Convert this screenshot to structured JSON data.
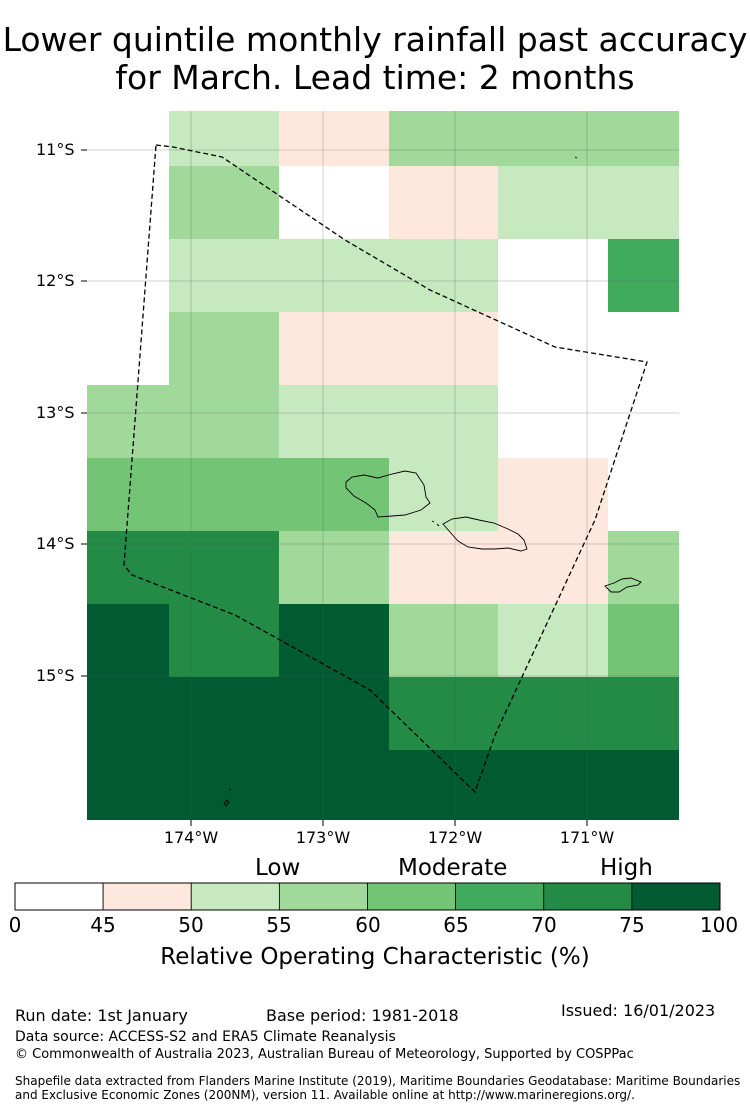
{
  "title": {
    "line1": "Lower quintile monthly rainfall past accuracy",
    "line2": "for March. Lead time: 2 months"
  },
  "map": {
    "lat_labels": [
      "11°S",
      "12°S",
      "13°S",
      "14°S",
      "15°S"
    ],
    "lon_labels": [
      "174°W",
      "173°W",
      "172°W",
      "171°W"
    ],
    "grid_rows": [
      [
        "none",
        "none",
        "#c7e9c0",
        "#fee8dd",
        "#a1d99b",
        "#a1d99b"
      ],
      [
        "none",
        "none",
        "#a1d99b",
        "#ffffff",
        "#fee8dd",
        "#c7e9c0"
      ],
      [
        "none",
        "none",
        "#c7e9c0",
        "#c7e9c0",
        "#c7e9c0",
        "#ffffff",
        "#41ab5d"
      ],
      [
        "none",
        "none",
        "#a1d99b",
        "#fee8dd",
        "#fee8dd",
        "#ffffff"
      ],
      [
        "none",
        "#a1d99b",
        "#a1d99b",
        "#c7e9c0",
        "#c7e9c0",
        "#ffffff"
      ],
      [
        "none",
        "#74c476",
        "#74c476",
        "#74c476",
        "#c7e9c0",
        "#fee8dd"
      ],
      [
        "none",
        "#238b45",
        "#238b45",
        "#a1d99b",
        "#fee8dd",
        "#fee8dd",
        "#a1d99b"
      ],
      [
        "none",
        "#005a32",
        "#238b45",
        "#005a32",
        "#a1d99b",
        "#c7e9c0",
        "#74c476"
      ],
      [
        "none",
        "#005a32",
        "#005a32",
        "#005a32",
        "#238b45",
        "#238b45",
        "#238b45"
      ],
      [
        "none",
        "#005a32",
        "#005a32",
        "#005a32",
        "#005a32",
        "#005a32",
        "#005a32"
      ]
    ]
  },
  "colorbar": {
    "categories": [
      "Low",
      "Moderate",
      "High"
    ],
    "ticks": [
      "0",
      "45",
      "50",
      "55",
      "60",
      "65",
      "70",
      "75",
      "100"
    ],
    "bins": [
      {
        "from": 0,
        "to": 45,
        "color": "#ffffff"
      },
      {
        "from": 45,
        "to": 50,
        "color": "#fee8dd"
      },
      {
        "from": 50,
        "to": 55,
        "color": "#c7e9c0"
      },
      {
        "from": 55,
        "to": 60,
        "color": "#a1d99b"
      },
      {
        "from": 60,
        "to": 65,
        "color": "#74c476"
      },
      {
        "from": 65,
        "to": 70,
        "color": "#41ab5d"
      },
      {
        "from": 70,
        "to": 75,
        "color": "#238b45"
      },
      {
        "from": 75,
        "to": 100,
        "color": "#005a32"
      }
    ],
    "axis_label": "Relative Operating Characteristic (%)"
  },
  "footer": {
    "run_date": "Run date: 1st January",
    "base_period": "Base period: 1981-2018",
    "issued": "Issued: 16/01/2023",
    "data_source": "Data source: ACCESS-S2 and ERA5 Climate Reanalysis",
    "copyright": "© Commonwealth of Australia 2023, Australian Bureau of Meteorology, Supported by COSPPac",
    "shapefile_line1": "Shapefile data extracted from Flanders Marine Institute (2019), Maritime Boundaries Geodatabase: Maritime Boundaries",
    "shapefile_line2": "and Exclusive Economic Zones (200NM), version 11. Available online at http://www.marineregions.org/."
  }
}
